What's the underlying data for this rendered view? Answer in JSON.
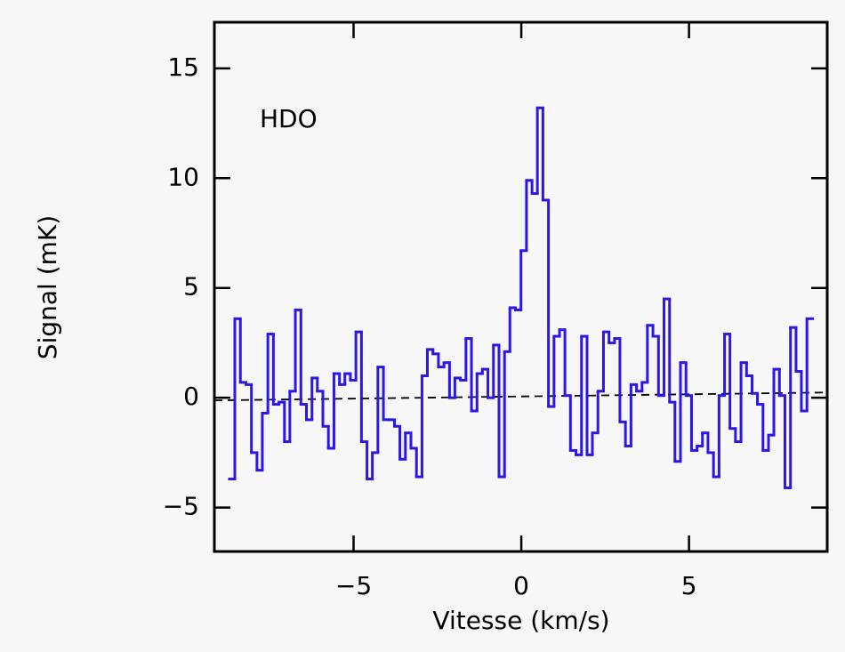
{
  "chart_data": {
    "type": "step",
    "annotation": "HDO",
    "x_label": "Vitesse (km/s)",
    "y_label": "Signal (mK)",
    "xlim": [
      -9.15,
      9.12
    ],
    "ylim": [
      -7.0,
      17.1
    ],
    "xticks": [
      {
        "value": -5,
        "label": "−5"
      },
      0,
      5
    ],
    "yticks": [
      {
        "value": -5,
        "label": "−5"
      },
      0,
      5,
      10,
      15
    ],
    "color": "#2a17e8",
    "x": [
      -8.62,
      -8.46,
      -8.29,
      -8.13,
      -7.96,
      -7.8,
      -7.64,
      -7.47,
      -7.31,
      -7.14,
      -6.98,
      -6.82,
      -6.65,
      -6.49,
      -6.32,
      -6.16,
      -6.0,
      -5.83,
      -5.67,
      -5.5,
      -5.34,
      -5.18,
      -5.01,
      -4.85,
      -4.68,
      -4.52,
      -4.36,
      -4.19,
      -4.03,
      -3.86,
      -3.7,
      -3.54,
      -3.37,
      -3.21,
      -3.04,
      -2.88,
      -2.72,
      -2.55,
      -2.39,
      -2.22,
      -2.06,
      -1.9,
      -1.73,
      -1.57,
      -1.4,
      -1.24,
      -1.08,
      -0.91,
      -0.75,
      -0.58,
      -0.42,
      -0.26,
      -0.09,
      0.07,
      0.24,
      0.4,
      0.56,
      0.73,
      0.89,
      1.06,
      1.22,
      1.38,
      1.55,
      1.71,
      1.88,
      2.04,
      2.2,
      2.37,
      2.53,
      2.7,
      2.86,
      3.02,
      3.19,
      3.35,
      3.52,
      3.68,
      3.84,
      4.01,
      4.17,
      4.34,
      4.5,
      4.66,
      4.83,
      4.99,
      5.16,
      5.32,
      5.48,
      5.65,
      5.81,
      5.98,
      6.14,
      6.3,
      6.47,
      6.63,
      6.8,
      6.96,
      7.12,
      7.29,
      7.45,
      7.61,
      7.78,
      7.94,
      8.11,
      8.27,
      8.43,
      8.6
    ],
    "values": [
      -3.7,
      3.6,
      0.7,
      0.6,
      -2.5,
      -3.3,
      -0.7,
      2.9,
      -0.3,
      -0.2,
      -2.0,
      0.3,
      4.0,
      -0.3,
      -1.0,
      0.9,
      0.3,
      -1.3,
      -2.3,
      1.1,
      0.6,
      1.1,
      0.8,
      3.0,
      -2.0,
      -3.7,
      -2.5,
      1.4,
      -1.0,
      -1.0,
      -1.3,
      -2.8,
      -1.6,
      -2.3,
      -3.6,
      1.0,
      2.2,
      2.0,
      1.4,
      1.6,
      0.0,
      0.9,
      0.8,
      2.7,
      -0.6,
      1.1,
      1.3,
      0.0,
      2.4,
      -3.6,
      2.1,
      4.1,
      4.0,
      6.7,
      9.9,
      9.3,
      13.2,
      9.0,
      -0.4,
      2.8,
      3.1,
      0.1,
      -2.4,
      -2.6,
      2.8,
      -2.6,
      -1.6,
      0.3,
      3.0,
      2.5,
      2.7,
      -1.1,
      -2.2,
      0.6,
      0.3,
      0.7,
      3.3,
      2.8,
      0.1,
      4.5,
      -0.2,
      -2.9,
      1.6,
      0.1,
      -2.4,
      -2.2,
      -1.6,
      -2.5,
      -3.6,
      0.1,
      2.9,
      -1.4,
      -2.0,
      1.6,
      1.0,
      0.2,
      -0.3,
      -2.4,
      -1.7,
      1.3,
      0.1,
      -4.1,
      3.2,
      1.2,
      -0.6,
      3.6
    ],
    "baseline": {
      "x": [
        -9.15,
        9.12
      ],
      "values": [
        -0.12,
        0.24
      ]
    }
  }
}
